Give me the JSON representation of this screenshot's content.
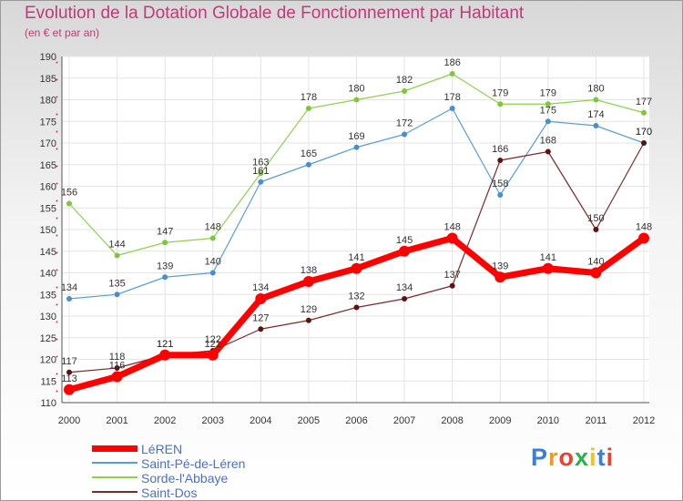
{
  "colors": {
    "title": "#c0397a",
    "legend_text": "#4a6fd0",
    "grid": "#e4e4e4"
  },
  "logo": {
    "text": "Proxiti",
    "colors": [
      "#3a7fd6",
      "#f29a1d",
      "#e8432c",
      "#2bb24c",
      "#f2c21d",
      "#3a7fd6",
      "#e8432c"
    ]
  },
  "chart_data": {
    "type": "line",
    "title": "Evolution de la Dotation Globale de Fonctionnement par Habitant",
    "subtitle": "(en € et par an)",
    "xlabel": "",
    "ylabel": "",
    "x": [
      "2000",
      "2001",
      "2002",
      "2003",
      "2004",
      "2005",
      "2006",
      "2007",
      "2008",
      "2009",
      "2010",
      "2011",
      "2012"
    ],
    "ylim": [
      110,
      190
    ],
    "yticks": [
      110,
      115,
      120,
      125,
      130,
      135,
      140,
      145,
      150,
      155,
      160,
      165,
      170,
      175,
      180,
      185,
      190
    ],
    "series": [
      {
        "name": "Sorde-l'Abbaye",
        "color": "#8fd14f",
        "dotcolor": "#7cc83a",
        "width": 1.2,
        "dot": 3,
        "values": [
          156,
          144,
          147,
          148,
          163,
          178,
          180,
          182,
          186,
          179,
          179,
          180,
          177
        ],
        "labels": [
          "156",
          "144",
          "147",
          "148",
          "163",
          "178",
          "180",
          "182",
          "186",
          "179",
          "179",
          "180",
          "177"
        ]
      },
      {
        "name": "Saint-Pé-de-Léren",
        "color": "#5a9fd4",
        "dotcolor": "#4a8fc8",
        "width": 1.2,
        "dot": 3,
        "values": [
          134,
          135,
          139,
          140,
          161,
          165,
          169,
          172,
          178,
          158,
          175,
          174,
          170
        ],
        "labels": [
          "134",
          "135",
          "139",
          "140",
          "161",
          "165",
          "169",
          "172",
          "178",
          "158",
          "175",
          "174",
          "170"
        ]
      },
      {
        "name": "Saint-Dos",
        "color": "#7a2a2a",
        "dotcolor": "#5a1414",
        "width": 1.2,
        "dot": 3,
        "values": [
          117,
          118,
          121,
          122,
          127,
          129,
          132,
          134,
          137,
          166,
          168,
          150,
          170
        ],
        "labels": [
          "117",
          "118",
          "121",
          "122",
          "127",
          "129",
          "132",
          "134",
          "137",
          "166",
          "168",
          "150",
          "170"
        ]
      },
      {
        "name": "LéREN",
        "color": "#ff0000",
        "dotcolor": "#ff0000",
        "width": 7,
        "dot": 6,
        "values": [
          113,
          116,
          121,
          121,
          134,
          138,
          141,
          145,
          148,
          139,
          141,
          140,
          148
        ],
        "labels": [
          "113",
          "116",
          "121",
          "121",
          "134",
          "138",
          "141",
          "145",
          "148",
          "139",
          "141",
          "140",
          "148"
        ]
      }
    ],
    "legend": [
      {
        "name": "LéREN",
        "color": "#ff0000",
        "width": 7
      },
      {
        "name": "Saint-Pé-de-Léren",
        "color": "#5a9fd4",
        "width": 1.5
      },
      {
        "name": "Sorde-l'Abbaye",
        "color": "#8fd14f",
        "width": 1.5
      },
      {
        "name": "Saint-Dos",
        "color": "#7a2a2a",
        "width": 1.5
      }
    ],
    "legend_position": "bottom-left"
  }
}
